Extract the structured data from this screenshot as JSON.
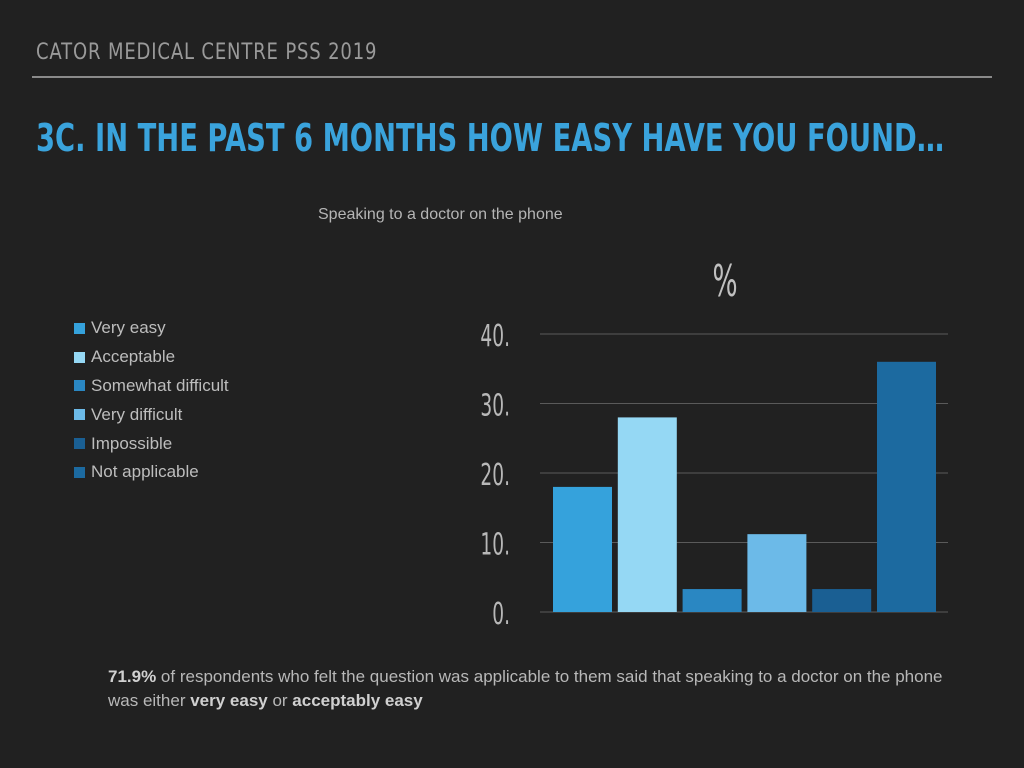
{
  "header": {
    "title": "CATOR MEDICAL CENTRE PSS 2019"
  },
  "slide": {
    "title": "3C. IN THE PAST 6 MONTHS HOW EASY HAVE YOU FOUND…"
  },
  "colors": {
    "background": "#212121",
    "title": "#3aa3dc",
    "gridline": "#5a5a5a",
    "series": [
      "#35a2dc",
      "#95d8f4",
      "#2a87c2",
      "#6cbae8",
      "#1a5f93",
      "#1c6aa0"
    ]
  },
  "chart_data": {
    "type": "bar",
    "title": "Speaking to a doctor on the phone",
    "unit_label": "%",
    "categories": [
      "Very easy",
      "Acceptable",
      "Somewhat difficult",
      "Very difficult",
      "Impossible",
      "Not applicable"
    ],
    "values": [
      18,
      28,
      3.3,
      11.2,
      3.3,
      36
    ],
    "ylim": [
      0,
      40
    ],
    "yticks": [
      0,
      10,
      20,
      30,
      40
    ],
    "ytick_labels": [
      "0.",
      "10.",
      "20.",
      "30.",
      "40."
    ],
    "grid": true,
    "legend_position": "left"
  },
  "footer": {
    "highlight_value": "71.9%",
    "text_a": " of respondents who felt the question was applicable to them said that speaking to a doctor on the phone was either ",
    "bold_1": "very easy",
    "text_b": " or ",
    "bold_2": "acceptably easy"
  }
}
